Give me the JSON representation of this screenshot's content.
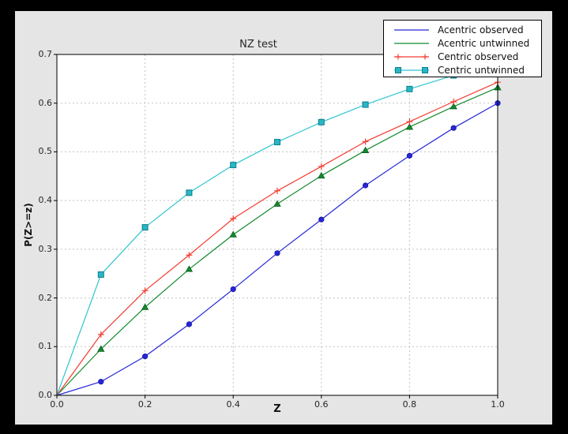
{
  "window": {
    "background": "#000000",
    "figure_background": "#e5e5e5",
    "axes_background": "#ffffff",
    "grid_color": "#c3c3c3",
    "spine_color": "#000000"
  },
  "chart_data": {
    "type": "line",
    "title": "NZ test",
    "xlabel": "Z",
    "ylabel": "P(Z>=z)",
    "xlim": [
      0.0,
      1.0
    ],
    "ylim": [
      0.0,
      0.7
    ],
    "grid": true,
    "legend_position": "top-right",
    "xticks": [
      0.0,
      0.2,
      0.4,
      0.6,
      0.8,
      1.0
    ],
    "xtick_labels": [
      "0.0",
      "0.2",
      "0.4",
      "0.6",
      "0.8",
      "1.0"
    ],
    "yticks": [
      0.0,
      0.1,
      0.2,
      0.3,
      0.4,
      0.5,
      0.6,
      0.7
    ],
    "ytick_labels": [
      "0.0",
      "0.1",
      "0.2",
      "0.3",
      "0.4",
      "0.5",
      "0.6",
      "0.7"
    ],
    "x": [
      0.0,
      0.1,
      0.2,
      0.3,
      0.4,
      0.5,
      0.6,
      0.7,
      0.8,
      0.9,
      1.0
    ],
    "series": [
      {
        "name": "Acentric observed",
        "color": "#2626d9",
        "marker": "circle",
        "marker_fill": "#2626d9",
        "marker_edge": "#15159e",
        "legend_marker": "none",
        "values": [
          0.0,
          0.028,
          0.08,
          0.146,
          0.218,
          0.292,
          0.361,
          0.431,
          0.492,
          0.549,
          0.6
        ]
      },
      {
        "name": "Acentric untwinned",
        "color": "#128a2e",
        "marker": "triangle",
        "marker_fill": "#128a2e",
        "marker_edge": "#085c1c",
        "legend_marker": "none",
        "values": [
          0.0,
          0.095,
          0.181,
          0.259,
          0.33,
          0.393,
          0.451,
          0.503,
          0.551,
          0.593,
          0.632
        ]
      },
      {
        "name": "Centric observed",
        "color": "#f43c30",
        "marker": "plus",
        "marker_fill": "#f43c30",
        "marker_edge": "#f43c30",
        "legend_marker": "plus",
        "values": [
          0.0,
          0.125,
          0.215,
          0.288,
          0.363,
          0.42,
          0.47,
          0.521,
          0.562,
          0.603,
          0.643
        ]
      },
      {
        "name": "Centric untwinned",
        "color": "#2fc5cf",
        "marker": "square",
        "marker_fill": "#29b6c5",
        "marker_edge": "#0e7f8c",
        "legend_marker": "square",
        "values": [
          0.0,
          0.248,
          0.345,
          0.416,
          0.473,
          0.52,
          0.561,
          0.597,
          0.629,
          0.657,
          0.683
        ]
      }
    ]
  }
}
